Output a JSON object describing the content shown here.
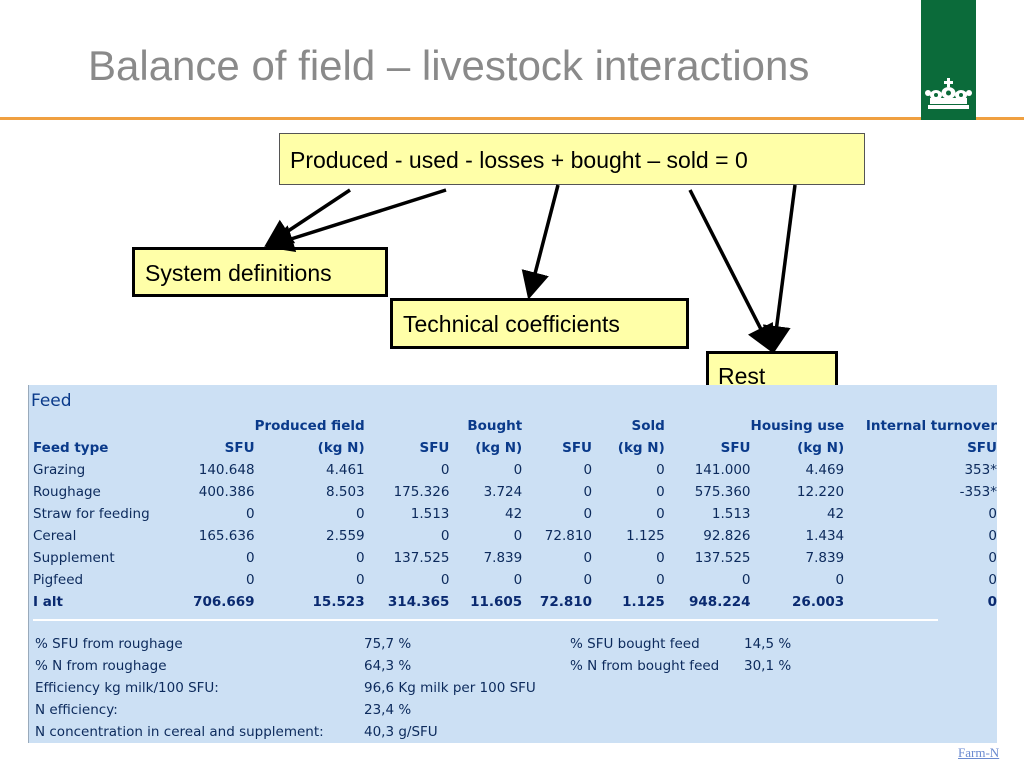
{
  "slide": {
    "title": "Balance of field – livestock interactions",
    "accent_color": "#f0a040",
    "logo_color": "#0b6b3a",
    "logo_icon": "crown-icon",
    "footer_link": "Farm-N"
  },
  "callouts": {
    "equation": "Produced - used - losses + bought – sold = 0",
    "system_definitions": "System definitions",
    "technical_coefficients": "Technical coefficients",
    "rest": "Rest"
  },
  "feed": {
    "title": "Feed",
    "group_headers": [
      "Produced field",
      "Bought",
      "Sold",
      "Housing use",
      "Internal turnover"
    ],
    "columns": [
      "Feed type",
      "SFU",
      "(kg N)",
      "SFU",
      "(kg N)",
      "SFU",
      "(kg N)",
      "SFU",
      "(kg N)",
      "SFU"
    ],
    "rows": [
      [
        "Grazing",
        "140.648",
        "4.461",
        "0",
        "0",
        "0",
        "0",
        "141.000",
        "4.469",
        "353*"
      ],
      [
        "Roughage",
        "400.386",
        "8.503",
        "175.326",
        "3.724",
        "0",
        "0",
        "575.360",
        "12.220",
        "-353*"
      ],
      [
        "Straw for feeding",
        "0",
        "0",
        "1.513",
        "42",
        "0",
        "0",
        "1.513",
        "42",
        "0"
      ],
      [
        "Cereal",
        "165.636",
        "2.559",
        "0",
        "0",
        "72.810",
        "1.125",
        "92.826",
        "1.434",
        "0"
      ],
      [
        "Supplement",
        "0",
        "0",
        "137.525",
        "7.839",
        "0",
        "0",
        "137.525",
        "7.839",
        "0"
      ],
      [
        "Pigfeed",
        "0",
        "0",
        "0",
        "0",
        "0",
        "0",
        "0",
        "0",
        "0"
      ]
    ],
    "total": [
      "I alt",
      "706.669",
      "15.523",
      "314.365",
      "11.605",
      "72.810",
      "1.125",
      "948.224",
      "26.003",
      "0"
    ],
    "stats": [
      {
        "label": "% SFU from roughage",
        "value": "75,7 %",
        "label2": "% SFU bought feed",
        "value2": "14,5 %"
      },
      {
        "label": "% N from roughage",
        "value": "64,3 %",
        "label2": "% N from bought feed",
        "value2": "30,1 %"
      },
      {
        "label": "Efficiency kg milk/100 SFU:",
        "value": "96,6 Kg milk per 100 SFU",
        "label2": "",
        "value2": ""
      },
      {
        "label": "N efficiency:",
        "value": "23,4 %",
        "label2": "",
        "value2": ""
      },
      {
        "label": "N concentration in cereal and supplement:",
        "value": "40,3 g/SFU",
        "label2": "",
        "value2": ""
      }
    ]
  }
}
